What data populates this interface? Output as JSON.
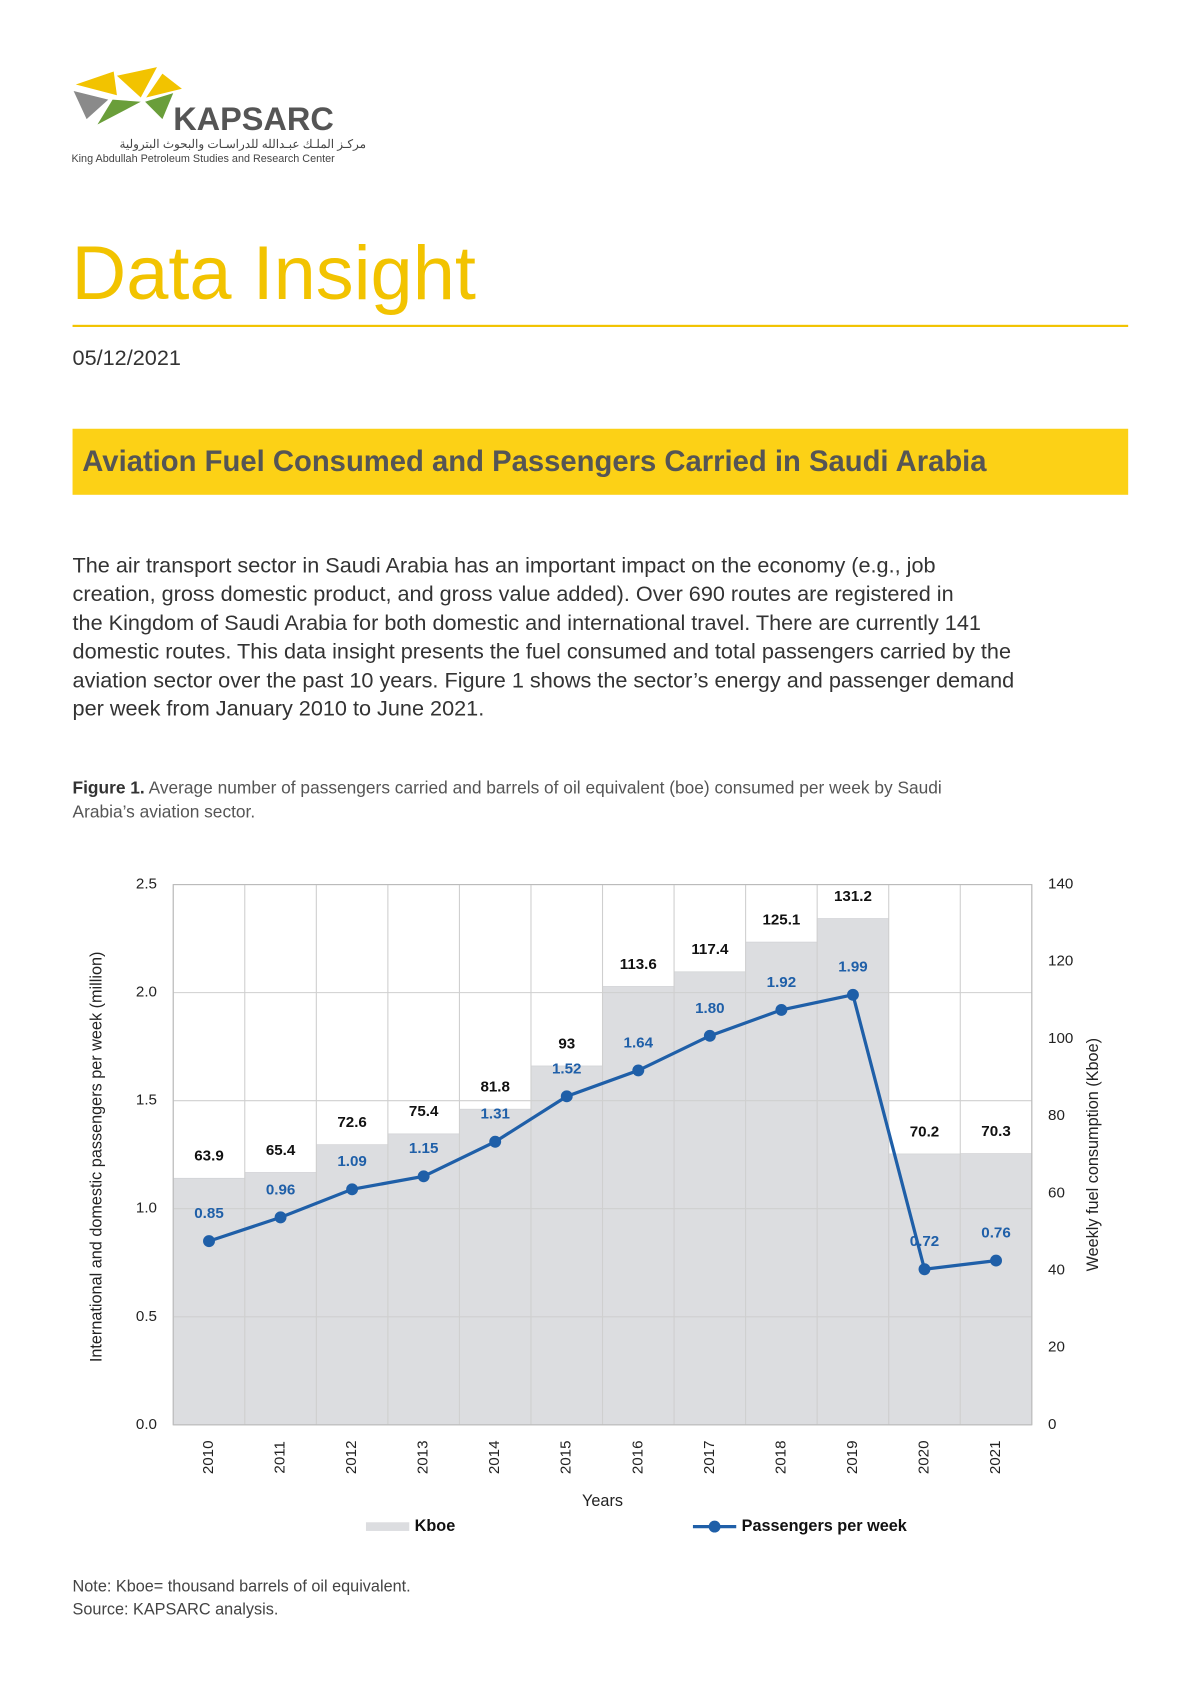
{
  "header": {
    "logo": "KAPSARC",
    "arabic_name": "مركـز الملـك عبـدالله للدراسـات والبحوث البترولية",
    "english_name": "King Abdullah Petroleum Studies and Research Center"
  },
  "title": "Data Insight",
  "date": "05/12/2021",
  "heading": "Aviation Fuel Consumed and Passengers Carried in Saudi Arabia",
  "body": {
    "lines": [
      "The air transport sector in Saudi Arabia has an important impact on the economy (e.g., job",
      "creation, gross domestic product, and gross value added). Over 690 routes are registered in",
      "the Kingdom of Saudi Arabia for both domestic and international travel. There are currently 141",
      "domestic routes. This data insight presents the fuel consumed and total passengers carried by the",
      "aviation sector over the past 10 years. Figure 1 shows the sector’s energy and passenger demand",
      "per week from January 2010 to June 2021."
    ]
  },
  "figure": {
    "label": "Figure 1.",
    "caption_lines": [
      " Average number of passengers carried and barrels of oil equivalent (boe) consumed per week by Saudi",
      "Arabia’s aviation sector."
    ]
  },
  "chart_data": {
    "type": "bar",
    "x_label": "Years",
    "y_label": "International and domestic passengers per week (million)",
    "y2_label": "Weekly fuel consumption (Kboe)",
    "categories": [
      "2010",
      "2011",
      "2012",
      "2013",
      "2014",
      "2015",
      "2016",
      "2017",
      "2018",
      "2019",
      "2020",
      "2021"
    ],
    "series": [
      {
        "name": "Kboe",
        "type": "bar",
        "axis": "y2",
        "color": "#dcdde0",
        "values": [
          63.9,
          65.4,
          72.6,
          75.4,
          81.8,
          93.0,
          113.6,
          117.4,
          125.1,
          131.2,
          70.2,
          70.3
        ]
      },
      {
        "name": "Passengers per week",
        "type": "line",
        "color": "#1f5fa8",
        "values": [
          0.85,
          0.96,
          1.09,
          1.15,
          1.31,
          1.52,
          1.64,
          1.8,
          1.92,
          1.99,
          0.72,
          0.76
        ],
        "value_labels": [
          "0.85",
          "0.96",
          "1.09",
          "1.15",
          "1.31",
          "1.52",
          "1.64",
          "1.80",
          "1.92",
          "1.99",
          "0.72",
          "0.76"
        ]
      }
    ],
    "ylim": [
      0,
      2.5
    ],
    "yticks": [
      {
        "value": 0,
        "label": "0.0"
      },
      0.5,
      {
        "value": 1,
        "label": "1.0"
      },
      1.5,
      {
        "value": 2,
        "label": "2.0"
      },
      2.5
    ],
    "y2lim": [
      0,
      140
    ],
    "y2ticks": [
      0,
      20,
      40,
      60,
      80,
      100,
      120,
      140
    ],
    "grid": true
  },
  "notes": [
    "Note: Kboe= thousand barrels of oil equivalent.",
    "Source: KAPSARC analysis."
  ]
}
